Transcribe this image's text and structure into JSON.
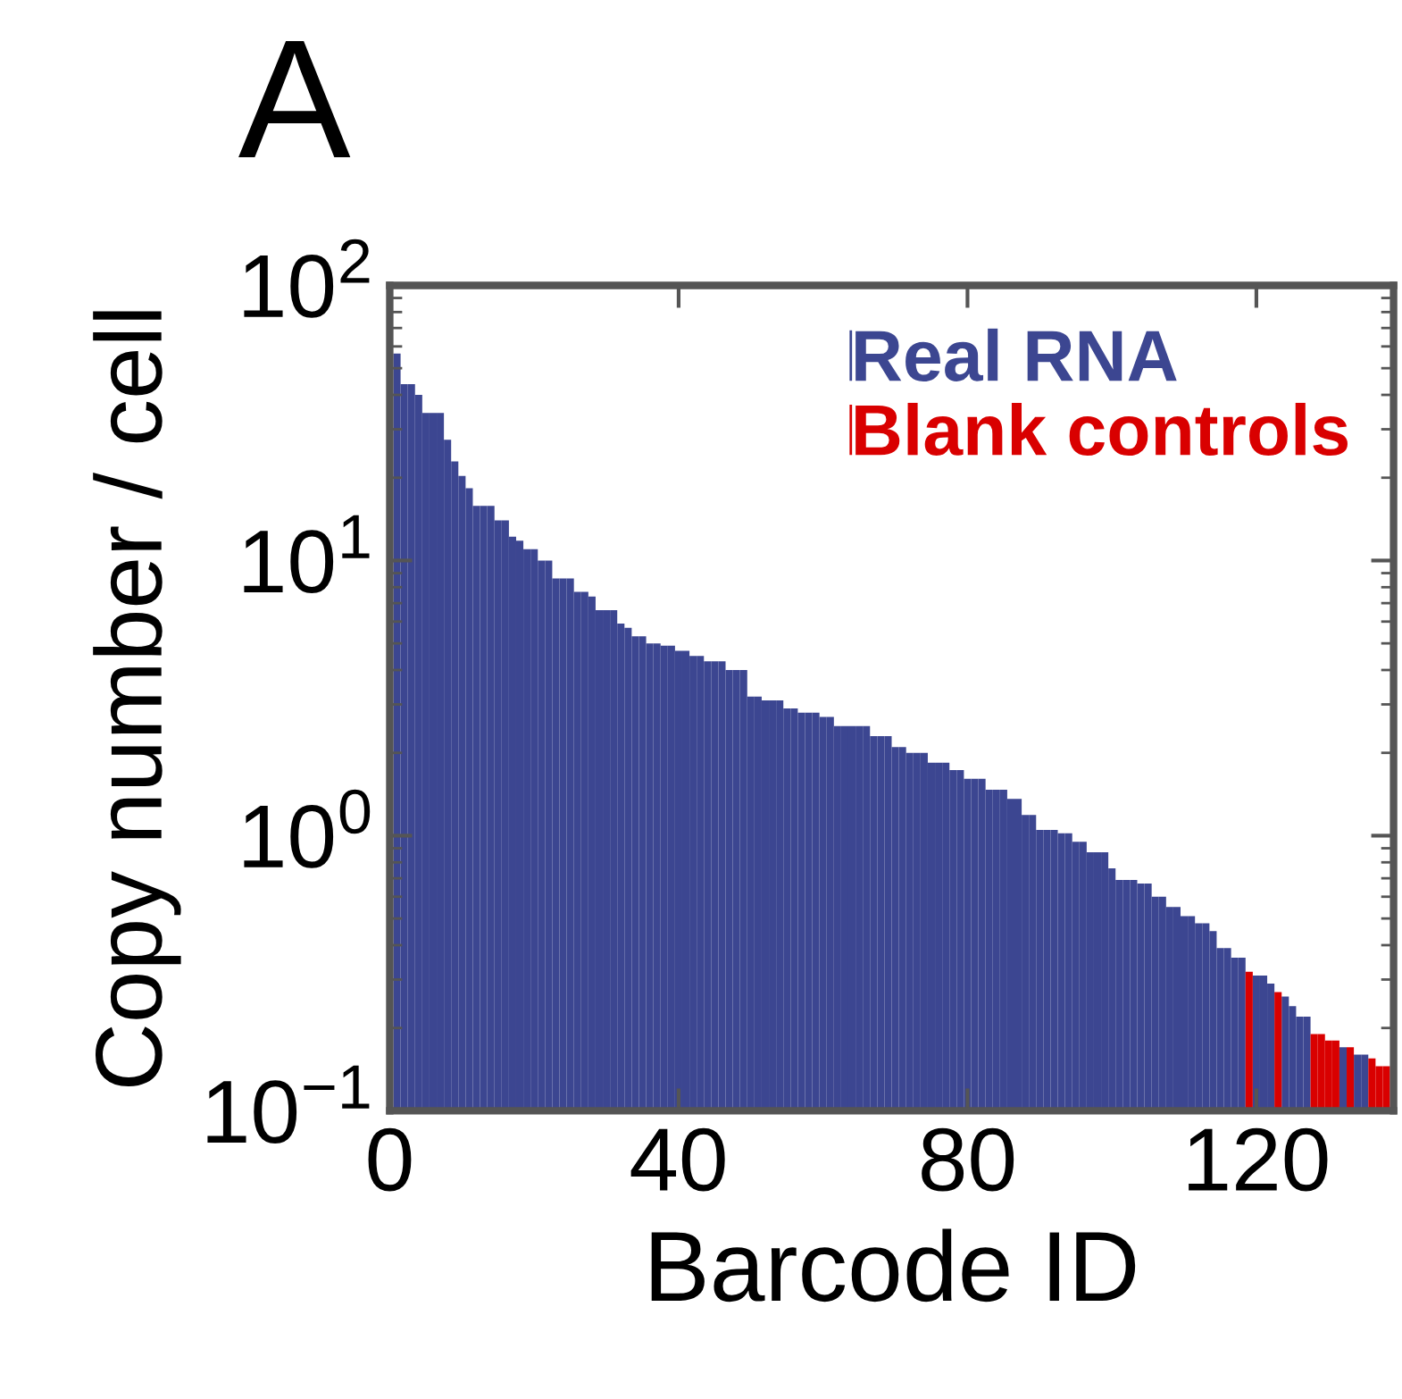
{
  "chart_data": {
    "type": "bar",
    "title": "A",
    "xlabel": "Barcode ID",
    "ylabel": "Copy number / cell",
    "x": [
      1,
      2,
      3,
      4,
      5,
      6,
      7,
      8,
      9,
      10,
      11,
      12,
      13,
      14,
      15,
      16,
      17,
      18,
      19,
      20,
      21,
      22,
      23,
      24,
      25,
      26,
      27,
      28,
      29,
      30,
      31,
      32,
      33,
      34,
      35,
      36,
      37,
      38,
      39,
      40,
      41,
      42,
      43,
      44,
      45,
      46,
      47,
      48,
      49,
      50,
      51,
      52,
      53,
      54,
      55,
      56,
      57,
      58,
      59,
      60,
      61,
      62,
      63,
      64,
      65,
      66,
      67,
      68,
      69,
      70,
      71,
      72,
      73,
      74,
      75,
      76,
      77,
      78,
      79,
      80,
      81,
      82,
      83,
      84,
      85,
      86,
      87,
      88,
      89,
      90,
      91,
      92,
      93,
      94,
      95,
      96,
      97,
      98,
      99,
      100,
      101,
      102,
      103,
      104,
      105,
      106,
      107,
      108,
      109,
      110,
      111,
      112,
      113,
      114,
      115,
      116,
      117,
      118,
      119,
      120,
      121,
      122,
      123,
      124,
      125,
      126,
      127,
      128,
      129,
      130,
      131,
      132,
      133,
      134,
      135,
      136,
      137,
      138
    ],
    "series": [
      {
        "name": "Real RNA",
        "color": "#3c4691",
        "values": [
          56.5,
          43.8,
          43.8,
          40.0,
          34.4,
          34.4,
          34.4,
          27.5,
          22.9,
          20.3,
          18.3,
          15.8,
          15.8,
          15.8,
          14.0,
          14.0,
          12.2,
          11.8,
          11.0,
          11.0,
          10.0,
          10.0,
          8.6,
          8.6,
          8.6,
          7.7,
          7.7,
          7.4,
          6.6,
          6.6,
          6.6,
          5.9,
          5.7,
          5.3,
          5.3,
          5.0,
          5.0,
          4.9,
          4.9,
          4.7,
          4.7,
          4.5,
          4.5,
          4.3,
          4.3,
          4.3,
          4.0,
          4.0,
          4.0,
          3.2,
          3.2,
          3.1,
          3.1,
          3.1,
          2.9,
          2.9,
          2.8,
          2.8,
          2.8,
          2.7,
          2.7,
          2.5,
          2.5,
          2.5,
          2.5,
          2.5,
          2.3,
          2.3,
          2.3,
          2.1,
          2.1,
          2.0,
          2.0,
          2.0,
          1.84,
          1.84,
          1.84,
          1.73,
          1.73,
          1.61,
          1.61,
          1.61,
          1.47,
          1.47,
          1.47,
          1.36,
          1.36,
          1.19,
          1.19,
          1.05,
          1.05,
          1.05,
          1.02,
          1.02,
          0.95,
          0.95,
          0.87,
          0.87,
          0.87,
          0.76,
          0.69,
          0.69,
          0.69,
          0.67,
          0.67,
          0.6,
          0.6,
          0.55,
          0.55,
          0.51,
          0.51,
          0.48,
          0.48,
          0.45,
          0.39,
          0.39,
          0.36,
          0.36,
          null,
          0.31,
          0.31,
          0.29,
          null,
          0.26,
          0.24,
          0.22,
          0.22,
          null,
          null,
          null,
          null,
          0.17,
          null,
          0.16,
          0.16,
          null,
          null,
          null
        ]
      },
      {
        "name": "Blank controls",
        "color": "#d90000",
        "values": [
          null,
          null,
          null,
          null,
          null,
          null,
          null,
          null,
          null,
          null,
          null,
          null,
          null,
          null,
          null,
          null,
          null,
          null,
          null,
          null,
          null,
          null,
          null,
          null,
          null,
          null,
          null,
          null,
          null,
          null,
          null,
          null,
          null,
          null,
          null,
          null,
          null,
          null,
          null,
          null,
          null,
          null,
          null,
          null,
          null,
          null,
          null,
          null,
          null,
          null,
          null,
          null,
          null,
          null,
          null,
          null,
          null,
          null,
          null,
          null,
          null,
          null,
          null,
          null,
          null,
          null,
          null,
          null,
          null,
          null,
          null,
          null,
          null,
          null,
          null,
          null,
          null,
          null,
          null,
          null,
          null,
          null,
          null,
          null,
          null,
          null,
          null,
          null,
          null,
          null,
          null,
          null,
          null,
          null,
          null,
          null,
          null,
          null,
          null,
          null,
          null,
          null,
          null,
          null,
          null,
          null,
          null,
          null,
          null,
          null,
          null,
          null,
          null,
          null,
          null,
          null,
          null,
          null,
          0.32,
          null,
          null,
          null,
          0.27,
          null,
          null,
          null,
          null,
          0.19,
          0.19,
          0.18,
          0.18,
          null,
          0.17,
          null,
          null,
          0.155,
          0.145,
          0.145
        ]
      }
    ],
    "log": "y",
    "xlim": [
      0,
      139
    ],
    "xticks": [
      0,
      40,
      80,
      120
    ],
    "ylim": [
      0.1,
      100
    ],
    "yticks": [
      {
        "value": 0.1,
        "label": "10$^{−1}$"
      },
      {
        "value": 1,
        "label": "10$^{0}$"
      },
      {
        "value": 10,
        "label": "10$^{1}$"
      },
      {
        "value": 100,
        "label": "10$^{2}$"
      }
    ],
    "legend": "top right",
    "grid": false
  }
}
